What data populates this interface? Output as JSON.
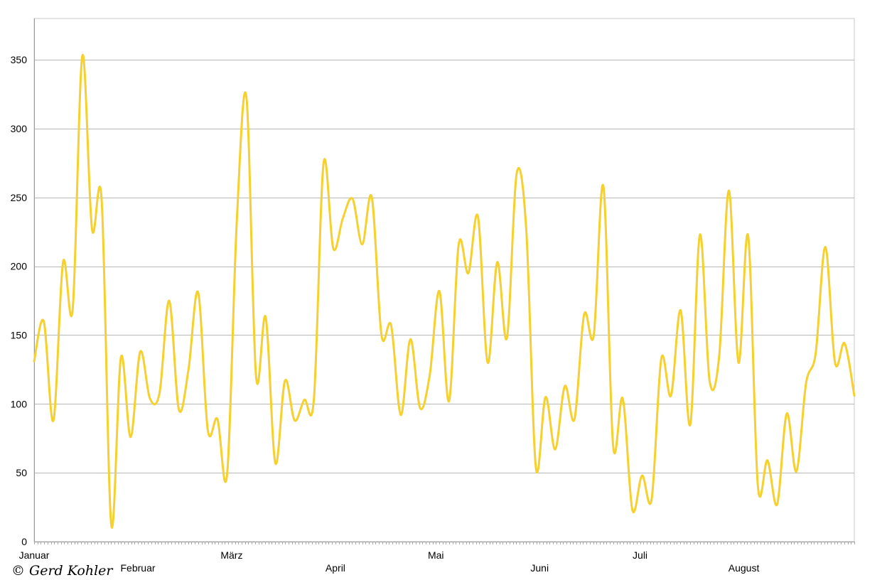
{
  "chart_data": {
    "type": "line",
    "title": "",
    "xlabel": "",
    "ylabel": "",
    "ylim": [
      0,
      380
    ],
    "yticks": [
      0,
      50,
      100,
      150,
      200,
      250,
      300,
      350
    ],
    "grid": true,
    "legend": "none",
    "series_color": "#F5D02E",
    "x_month_labels": [
      "Januar",
      "Februar",
      "März",
      "April",
      "Mai",
      "Juni",
      "Juli",
      "August"
    ],
    "series": [
      {
        "values": [
          131,
          160,
          88,
          203,
          169,
          353,
          227,
          248,
          12,
          134,
          76,
          138,
          104,
          108,
          175,
          96,
          125,
          181,
          81,
          89,
          49,
          232,
          323,
          120,
          163,
          57,
          117,
          88,
          103,
          104,
          275,
          213,
          235,
          249,
          216,
          250,
          150,
          157,
          92,
          147,
          97,
          121,
          182,
          102,
          216,
          195,
          236,
          130,
          203,
          148,
          267,
          227,
          54,
          105,
          67,
          113,
          89,
          165,
          150,
          258,
          70,
          104,
          23,
          48,
          31,
          133,
          106,
          168,
          85,
          223,
          117,
          135,
          255,
          130,
          222,
          41,
          59,
          27,
          93,
          51,
          115,
          137,
          214,
          130,
          144,
          106
        ]
      }
    ]
  },
  "copyright": "© Gerd Kohler"
}
